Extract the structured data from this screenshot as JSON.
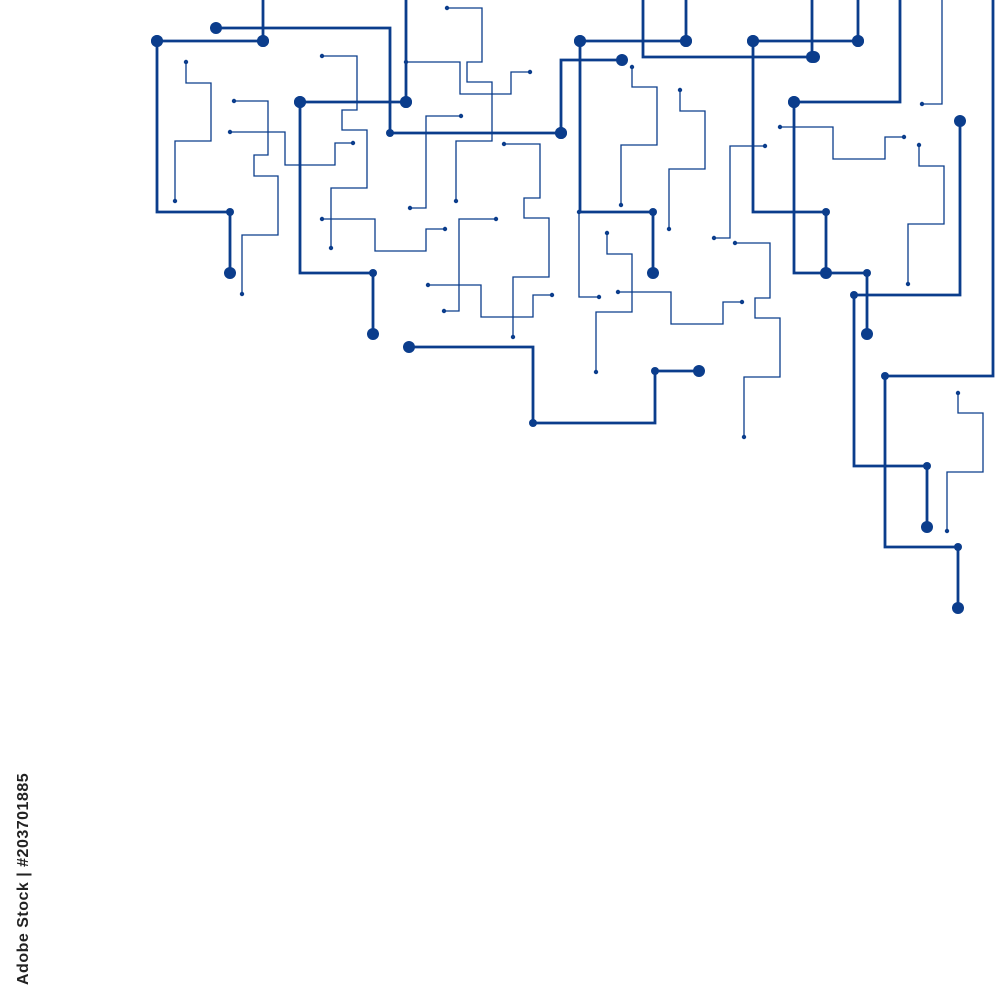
{
  "watermark": "Adobe Stock | #203701885"
}
